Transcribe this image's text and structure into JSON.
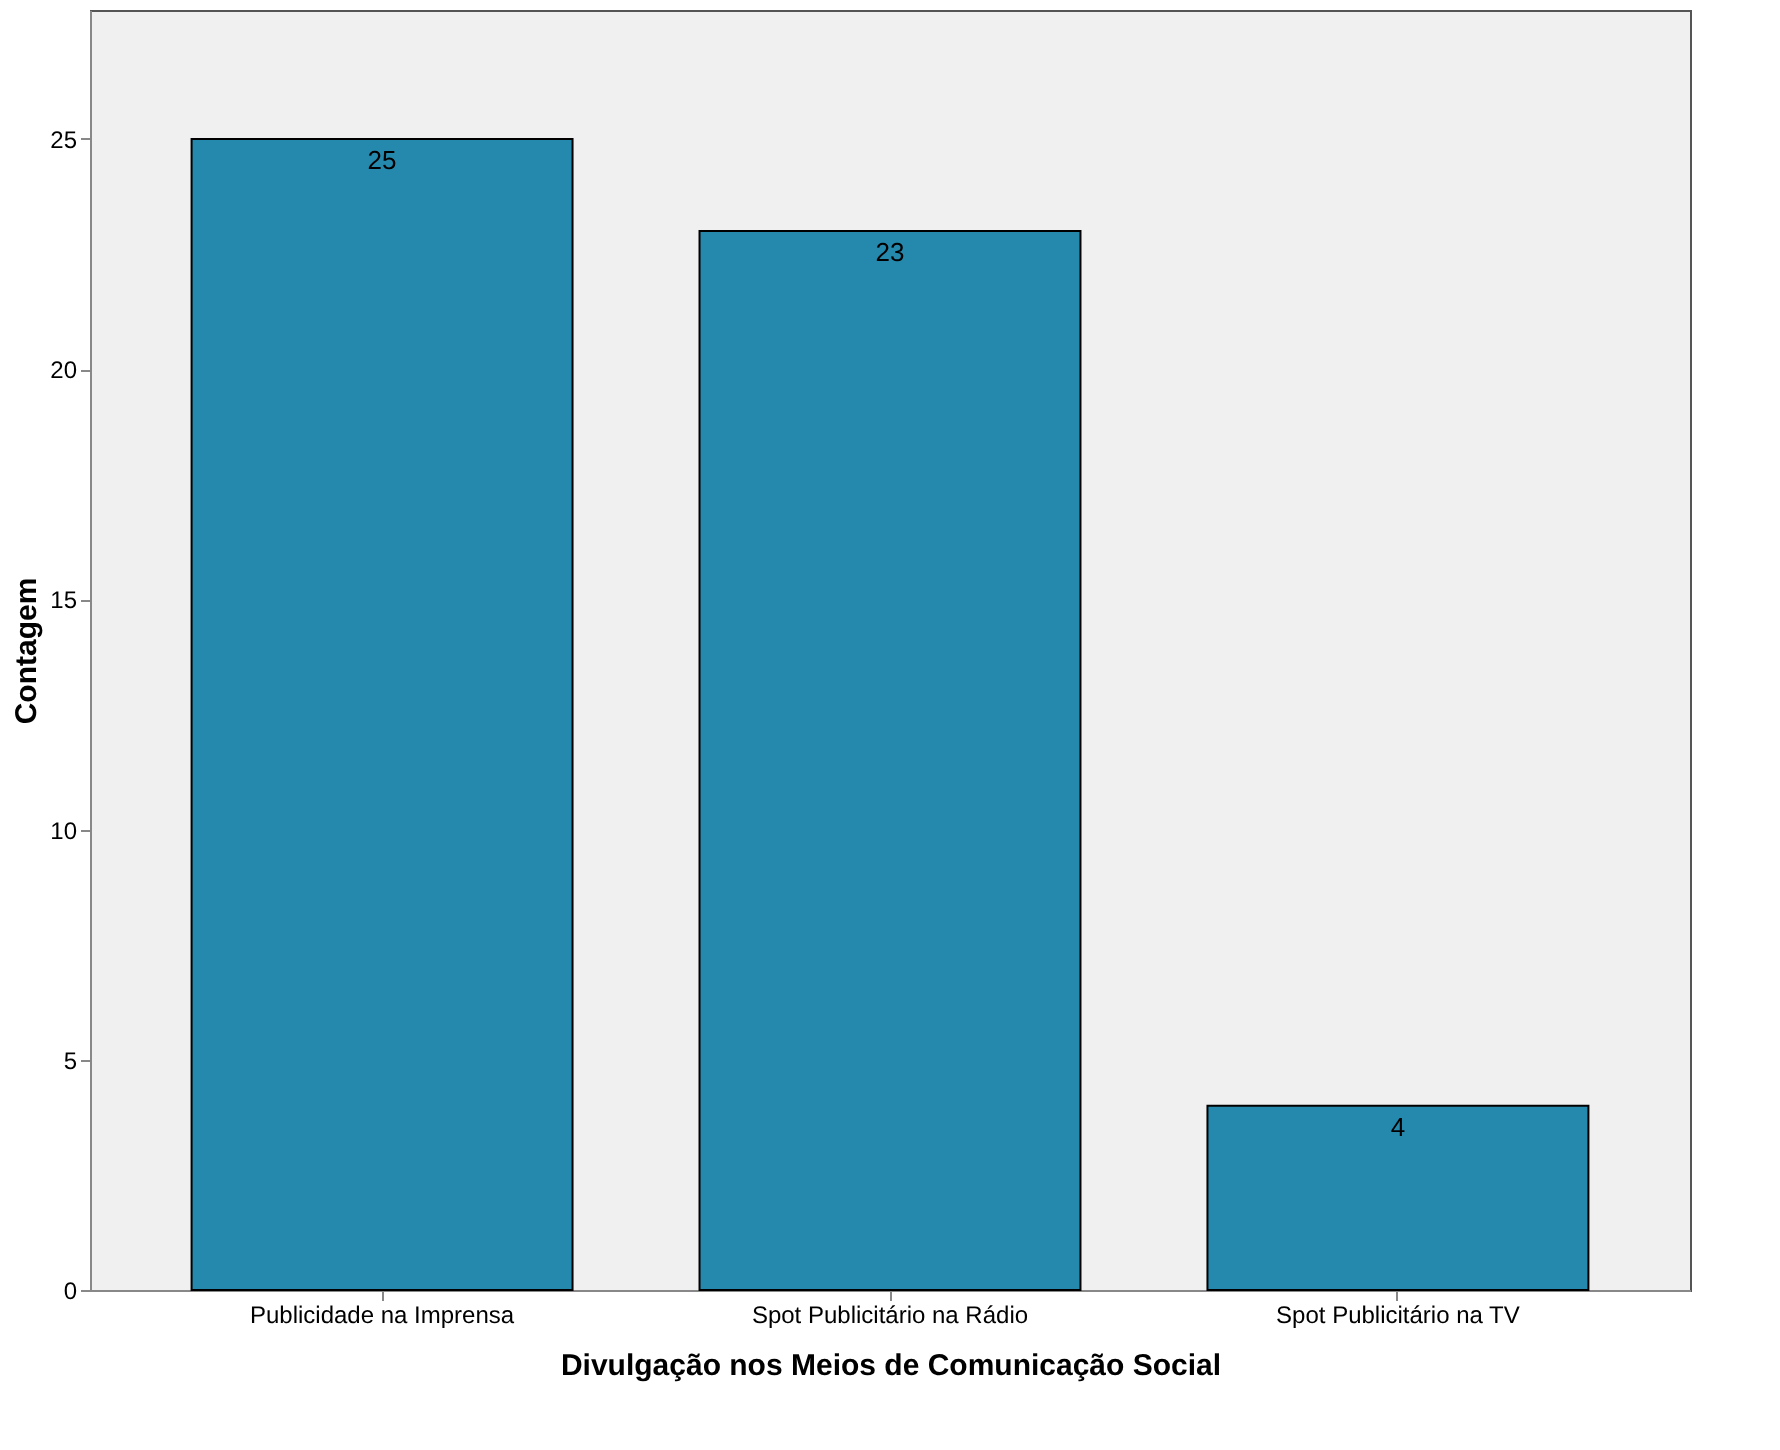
{
  "chart_data": {
    "type": "bar",
    "categories": [
      "Publicidade na Imprensa",
      "Spot Publicitário na Rádio",
      "Spot Publicitário na TV"
    ],
    "values": [
      25,
      23,
      4
    ],
    "color": "#2589ad",
    "xlabel": "Divulgação nos Meios de Comunicação Social",
    "ylabel": "Contagem",
    "ylim": [
      0,
      27.8
    ],
    "yticks": [
      0,
      5,
      10,
      15,
      20,
      25
    ],
    "data_labels": true,
    "grid": false
  }
}
